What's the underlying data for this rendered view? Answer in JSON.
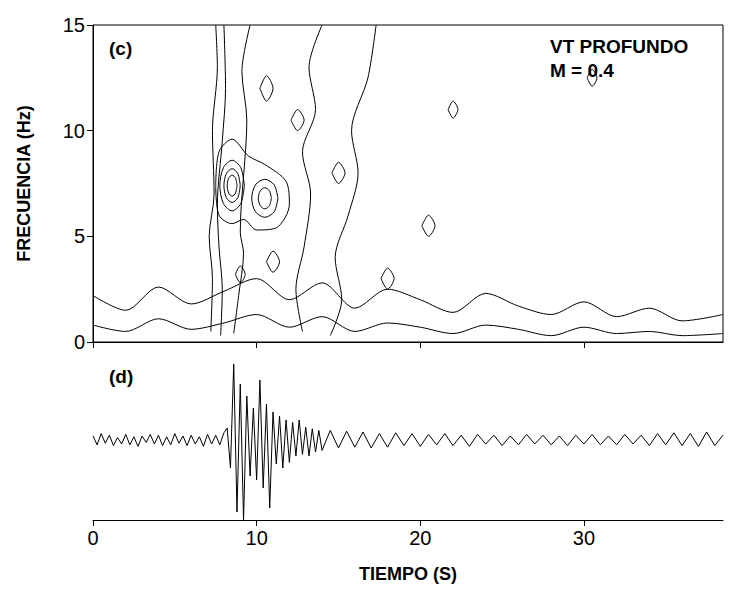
{
  "chart_data": [
    {
      "type": "contour",
      "panel": "(c)",
      "annotations": [
        "VT PROFUNDO",
        "M = 0.4"
      ],
      "y_label": "FRECUENCIA (Hz)",
      "xlim": [
        0,
        38.5
      ],
      "xticks": [
        0,
        10,
        20,
        30
      ],
      "ylim": [
        0,
        15
      ],
      "yticks": [
        0,
        5,
        10,
        15
      ],
      "grid": false,
      "tick_labels": "y",
      "color": "#000000",
      "contours": [
        {
          "x": [
            8.8,
            8.71,
            8.5,
            8.29,
            8.2,
            8.29,
            8.5,
            8.71,
            8.8
          ],
          "y": [
            7.4,
            7.75,
            7.9,
            7.75,
            7.4,
            7.05,
            6.9,
            7.05,
            7.4
          ]
        },
        {
          "x": [
            9.0,
            8.85,
            8.5,
            8.15,
            8.0,
            8.15,
            8.5,
            8.85,
            9.0
          ],
          "y": [
            7.4,
            7.97,
            8.2,
            7.97,
            7.4,
            6.83,
            6.6,
            6.83,
            7.4
          ]
        },
        {
          "x": [
            9.25,
            9.03,
            8.5,
            7.97,
            7.75,
            7.97,
            8.5,
            9.03,
            9.25
          ],
          "y": [
            7.4,
            8.25,
            8.6,
            8.25,
            7.4,
            6.55,
            6.2,
            6.55,
            7.4
          ]
        },
        {
          "x": [
            10.9,
            10.78,
            10.5,
            10.22,
            10.1,
            10.22,
            10.5,
            10.78,
            10.9
          ],
          "y": [
            6.8,
            7.15,
            7.3,
            7.15,
            6.8,
            6.45,
            6.3,
            6.45,
            6.8
          ]
        },
        {
          "x": [
            11.3,
            11.07,
            10.5,
            9.93,
            9.7,
            9.93,
            10.5,
            11.07,
            11.3
          ],
          "y": [
            6.8,
            7.44,
            7.7,
            7.44,
            6.8,
            6.16,
            5.9,
            6.16,
            6.8
          ]
        },
        {
          "x": [
            7.5,
            7.7,
            8.5,
            9.5,
            10.5,
            11.8,
            12.0,
            11.2,
            10.0,
            9.2,
            8.5,
            7.7,
            7.5
          ],
          "y": [
            7.4,
            9.0,
            9.6,
            8.8,
            8.4,
            7.6,
            6.5,
            5.4,
            5.3,
            5.8,
            5.6,
            6.0,
            7.4
          ]
        },
        {
          "x": [
            7.2,
            7.3,
            7.1,
            7.4,
            7.3,
            7.6,
            7.5
          ],
          "y": [
            0.5,
            3,
            5,
            7,
            10,
            13,
            15
          ]
        },
        {
          "x": [
            7.8,
            7.9,
            7.7,
            7.6,
            7.9,
            8.1,
            8.0
          ],
          "y": [
            0.3,
            2.5,
            4.5,
            6.5,
            9.5,
            12,
            15
          ]
        },
        {
          "x": [
            8.6,
            8.9,
            9.2,
            9.0,
            9.4,
            9.1,
            9.6
          ],
          "y": [
            0.4,
            2.2,
            4.2,
            5.2,
            10.5,
            12.8,
            15
          ]
        },
        {
          "x": [
            12.8,
            12.4,
            12.9,
            13.3,
            12.8,
            13.6,
            13.2,
            14.0
          ],
          "y": [
            0.5,
            2.5,
            4.5,
            7,
            9,
            11,
            13,
            15
          ]
        },
        {
          "x": [
            14.5,
            15.2,
            14.8,
            15.6,
            16.2,
            15.8,
            16.8,
            17.3
          ],
          "y": [
            0.3,
            2,
            4,
            6,
            8,
            10,
            12.5,
            15
          ]
        },
        {
          "x": [
            8.7,
            9.0,
            9.3,
            9.0,
            8.7
          ],
          "y": [
            3.2,
            3.6,
            3.2,
            2.8,
            3.2
          ]
        },
        {
          "x": [
            10.6,
            11.0,
            11.4,
            11.0,
            10.6
          ],
          "y": [
            3.8,
            4.3,
            3.8,
            3.3,
            3.8
          ]
        },
        {
          "x": [
            12.1,
            12.5,
            12.9,
            12.5,
            12.1
          ],
          "y": [
            10.5,
            11.0,
            10.5,
            10.0,
            10.5
          ]
        },
        {
          "x": [
            10.2,
            10.6,
            11.0,
            10.6,
            10.2
          ],
          "y": [
            12.0,
            12.6,
            12.0,
            11.4,
            12.0
          ]
        },
        {
          "x": [
            14.6,
            15.0,
            15.4,
            15.0,
            14.6
          ],
          "y": [
            8.0,
            8.5,
            8.0,
            7.5,
            8.0
          ]
        },
        {
          "x": [
            17.6,
            18.0,
            18.4,
            18.0,
            17.6
          ],
          "y": [
            3.0,
            3.5,
            3.0,
            2.5,
            3.0
          ]
        },
        {
          "x": [
            20.1,
            20.5,
            20.9,
            20.5,
            20.1
          ],
          "y": [
            5.5,
            6.0,
            5.5,
            5.0,
            5.5
          ]
        },
        {
          "x": [
            21.7,
            22.0,
            22.3,
            22.0,
            21.7
          ],
          "y": [
            11.0,
            11.4,
            11.0,
            10.6,
            11.0
          ]
        },
        {
          "x": [
            30.2,
            30.5,
            30.8,
            30.5,
            30.2
          ],
          "y": [
            12.5,
            12.9,
            12.5,
            12.1,
            12.5
          ]
        },
        {
          "x": [
            0,
            2,
            4,
            6,
            8,
            10,
            12,
            14,
            16,
            18,
            20,
            22,
            24,
            26,
            28,
            30,
            32,
            34,
            36,
            38.5
          ],
          "y": [
            2.2,
            1.5,
            2.6,
            1.8,
            2.4,
            3.0,
            2.0,
            2.8,
            1.6,
            2.5,
            2.0,
            1.4,
            2.3,
            1.7,
            1.3,
            1.9,
            1.2,
            1.6,
            1.0,
            1.3
          ]
        },
        {
          "x": [
            0,
            2,
            4,
            6,
            8,
            10,
            12,
            14,
            16,
            18,
            20,
            22,
            24,
            26,
            28,
            30,
            32,
            34,
            36,
            38.5
          ],
          "y": [
            0.8,
            0.5,
            1.1,
            0.6,
            0.9,
            1.3,
            0.7,
            1.2,
            0.5,
            0.9,
            0.7,
            0.4,
            0.8,
            0.6,
            0.3,
            0.7,
            0.4,
            0.5,
            0.3,
            0.4
          ]
        }
      ]
    },
    {
      "type": "line",
      "panel": "(d)",
      "x_label": "TIEMPO (S)",
      "xlim": [
        0,
        38.5
      ],
      "xticks": [
        0,
        10,
        20,
        30
      ],
      "ylim": [
        -1,
        1
      ],
      "tick_labels": "x",
      "color": "#000000",
      "x": [
        0,
        0.25,
        0.5,
        0.75,
        1,
        1.25,
        1.5,
        1.75,
        2,
        2.25,
        2.5,
        2.75,
        3,
        3.25,
        3.5,
        3.75,
        4,
        4.25,
        4.5,
        4.75,
        5,
        5.25,
        5.5,
        5.75,
        6,
        6.25,
        6.5,
        6.75,
        7,
        7.25,
        7.5,
        7.75,
        8,
        8.2,
        8.4,
        8.6,
        8.8,
        9.0,
        9.2,
        9.4,
        9.6,
        9.8,
        10.0,
        10.2,
        10.4,
        10.6,
        10.8,
        11.0,
        11.2,
        11.4,
        11.6,
        11.8,
        12.0,
        12.2,
        12.4,
        12.6,
        12.8,
        13.0,
        13.2,
        13.4,
        13.6,
        13.8,
        14.0,
        14.5,
        15,
        15.5,
        16,
        16.5,
        17,
        17.5,
        18,
        18.5,
        19,
        19.5,
        20,
        20.5,
        21,
        21.5,
        22,
        22.5,
        23,
        23.5,
        24,
        24.5,
        25,
        25.5,
        26,
        26.5,
        27,
        27.5,
        28,
        28.5,
        29,
        29.5,
        30,
        30.5,
        31,
        31.5,
        32,
        32.5,
        33,
        33.5,
        34,
        34.5,
        35,
        35.5,
        36,
        36.5,
        37,
        37.5,
        38,
        38.5
      ],
      "values": [
        0.05,
        -0.06,
        0.08,
        -0.04,
        0.06,
        -0.07,
        0.03,
        -0.05,
        0.07,
        -0.06,
        0.04,
        -0.08,
        0.05,
        -0.03,
        0.07,
        -0.05,
        0.06,
        -0.07,
        0.04,
        -0.06,
        0.08,
        -0.04,
        0.05,
        -0.07,
        0.06,
        -0.05,
        0.04,
        -0.08,
        0.07,
        -0.05,
        0.06,
        -0.06,
        0.09,
        0.15,
        -0.35,
        0.95,
        -0.9,
        0.7,
        -1.0,
        0.55,
        -0.45,
        0.4,
        -0.5,
        0.75,
        -0.6,
        0.45,
        -0.85,
        0.35,
        -0.3,
        0.3,
        -0.35,
        0.25,
        -0.28,
        0.22,
        -0.2,
        0.25,
        -0.18,
        0.16,
        -0.2,
        0.14,
        -0.15,
        0.12,
        -0.13,
        0.12,
        -0.1,
        0.11,
        -0.09,
        0.1,
        -0.1,
        0.08,
        -0.09,
        0.09,
        -0.07,
        0.08,
        -0.08,
        0.07,
        -0.06,
        0.08,
        -0.07,
        0.06,
        -0.08,
        0.07,
        -0.05,
        0.06,
        -0.07,
        0.05,
        -0.06,
        0.07,
        -0.05,
        0.06,
        -0.06,
        0.05,
        -0.07,
        0.06,
        -0.05,
        0.07,
        -0.06,
        0.05,
        -0.06,
        0.07,
        -0.05,
        0.06,
        -0.07,
        0.08,
        -0.06,
        0.09,
        -0.07,
        0.08,
        -0.08,
        0.1,
        -0.07,
        0.06
      ]
    }
  ]
}
